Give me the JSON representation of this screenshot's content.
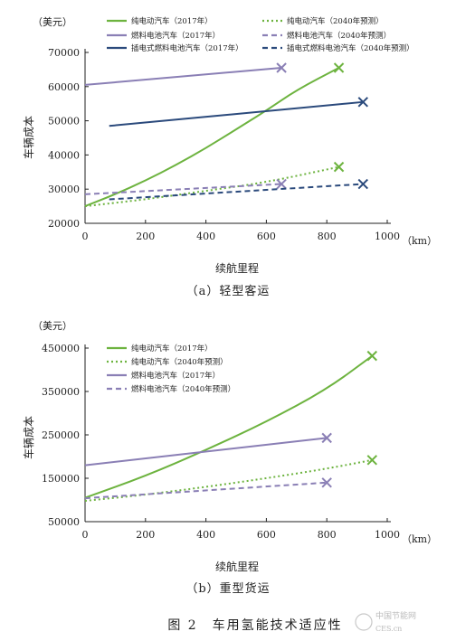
{
  "figure_caption": "图 2　车用氢能技术适应性",
  "watermark": {
    "text": "中国节能网",
    "sub": "CES.cn"
  },
  "colors": {
    "bev": "#6db33f",
    "fcev": "#8a7fb5",
    "phev": "#2b4a7c",
    "axis": "#222222"
  },
  "chart_data": [
    {
      "type": "line",
      "id": "a",
      "caption": "（a）轻型客运",
      "unit_label": "（美元）",
      "xlabel": "续航里程",
      "ylabel": "车辆成本",
      "x_unit": "（km）",
      "xlim": [
        0,
        1000
      ],
      "ylim": [
        20000,
        70000
      ],
      "x_ticks": [
        0,
        200,
        400,
        600,
        800,
        1000
      ],
      "y_ticks": [
        20000,
        30000,
        40000,
        50000,
        60000,
        70000
      ],
      "x_tick_labels": [
        "0",
        "200",
        "400",
        "600",
        "800",
        "1000"
      ],
      "y_tick_labels": [
        "20000",
        "30000",
        "40000",
        "50000",
        "60000",
        "70000"
      ],
      "legend": [
        {
          "label": "纯电动汽车（2017年）",
          "color": "#6db33f",
          "dash": "solid"
        },
        {
          "label": "纯电动汽车（2040年预测）",
          "color": "#6db33f",
          "dash": "dot"
        },
        {
          "label": "燃料电池汽车（2017年）",
          "color": "#8a7fb5",
          "dash": "solid"
        },
        {
          "label": "燃料电池汽车（2040年预测）",
          "color": "#8a7fb5",
          "dash": "dash"
        },
        {
          "label": "插电式燃料电池汽车（2017年）",
          "color": "#2b4a7c",
          "dash": "solid"
        },
        {
          "label": "插电式燃料电池汽车（2040年预测）",
          "color": "#2b4a7c",
          "dash": "dash"
        }
      ],
      "series": [
        {
          "name": "纯电动汽车（2017年）",
          "color": "#6db33f",
          "dash": "solid",
          "x": [
            0,
            100,
            200,
            300,
            400,
            500,
            600,
            700,
            840
          ],
          "y": [
            25000,
            28500,
            32500,
            37000,
            42000,
            47500,
            53000,
            59000,
            65500
          ],
          "end_marker": true
        },
        {
          "name": "纯电动汽车（2040年预测）",
          "color": "#6db33f",
          "dash": "dot",
          "x": [
            0,
            200,
            400,
            600,
            840
          ],
          "y": [
            25000,
            27000,
            29500,
            32000,
            36500
          ],
          "end_marker": true
        },
        {
          "name": "燃料电池汽车（2017年）",
          "color": "#8a7fb5",
          "dash": "solid",
          "x": [
            0,
            650
          ],
          "y": [
            60500,
            65500
          ],
          "end_marker": true
        },
        {
          "name": "燃料电池汽车（2040年预测）",
          "color": "#8a7fb5",
          "dash": "dash",
          "x": [
            0,
            650
          ],
          "y": [
            28500,
            31500
          ],
          "end_marker": true
        },
        {
          "name": "插电式燃料电池汽车（2017年）",
          "color": "#2b4a7c",
          "dash": "solid",
          "x": [
            80,
            920
          ],
          "y": [
            48500,
            55500
          ],
          "end_marker": true
        },
        {
          "name": "插电式燃料电池汽车（2040年预测）",
          "color": "#2b4a7c",
          "dash": "dash",
          "x": [
            80,
            920
          ],
          "y": [
            27000,
            31500
          ],
          "end_marker": true
        }
      ]
    },
    {
      "type": "line",
      "id": "b",
      "caption": "（b）重型货运",
      "unit_label": "（美元）",
      "xlabel": "续航里程",
      "ylabel": "车辆成本",
      "x_unit": "（km）",
      "xlim": [
        0,
        1000
      ],
      "ylim": [
        50000,
        450000
      ],
      "x_ticks": [
        0,
        200,
        400,
        600,
        800,
        1000
      ],
      "y_ticks": [
        50000,
        150000,
        250000,
        350000,
        450000
      ],
      "x_tick_labels": [
        "0",
        "200",
        "400",
        "600",
        "800",
        "1000"
      ],
      "y_tick_labels": [
        "50000",
        "150000",
        "250000",
        "350000",
        "450000"
      ],
      "legend": [
        {
          "label": "纯电动汽车（2017年）",
          "color": "#6db33f",
          "dash": "solid"
        },
        {
          "label": "纯电动汽车（2040年预测）",
          "color": "#6db33f",
          "dash": "dot"
        },
        {
          "label": "燃料电池汽车（2017年）",
          "color": "#8a7fb5",
          "dash": "solid"
        },
        {
          "label": "燃料电池汽车（2040年预测）",
          "color": "#8a7fb5",
          "dash": "dash"
        }
      ],
      "series": [
        {
          "name": "纯电动汽车（2017年）",
          "color": "#6db33f",
          "dash": "solid",
          "x": [
            0,
            200,
            400,
            600,
            800,
            950
          ],
          "y": [
            105000,
            155000,
            215000,
            280000,
            355000,
            432000
          ],
          "end_marker": true
        },
        {
          "name": "纯电动汽车（2040年预测）",
          "color": "#6db33f",
          "dash": "dot",
          "x": [
            0,
            200,
            400,
            600,
            800,
            950
          ],
          "y": [
            98000,
            112000,
            130000,
            150000,
            172000,
            192000
          ],
          "end_marker": true
        },
        {
          "name": "燃料电池汽车（2017年）",
          "color": "#8a7fb5",
          "dash": "solid",
          "x": [
            0,
            800
          ],
          "y": [
            180000,
            243000
          ],
          "end_marker": true
        },
        {
          "name": "燃料电池汽车（2040年预测）",
          "color": "#8a7fb5",
          "dash": "dash",
          "x": [
            0,
            800
          ],
          "y": [
            104000,
            140000
          ],
          "end_marker": true
        }
      ]
    }
  ]
}
